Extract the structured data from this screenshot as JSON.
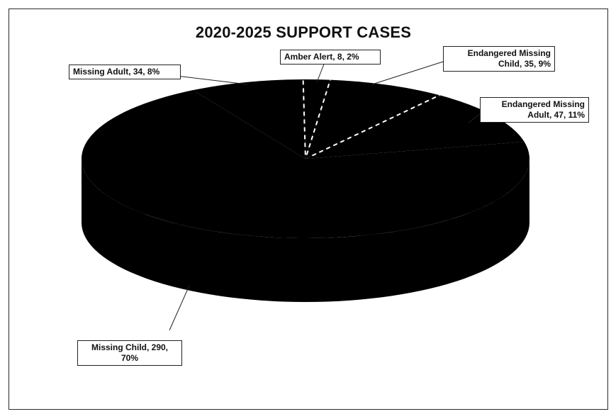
{
  "chart_data": {
    "type": "pie",
    "title": "2020-2025 SUPPORT CASES",
    "categories": [
      "Missing Child",
      "Missing Adult",
      "Amber Alert",
      "Endangered Missing Child",
      "Endangered Missing Adult"
    ],
    "values": [
      290,
      34,
      8,
      35,
      47
    ],
    "percents": [
      70,
      8,
      2,
      9,
      11
    ],
    "labels": [
      {
        "line1": "Missing Child, 290,",
        "line2": "70%"
      },
      {
        "line1": "Missing Adult, 34, 8%",
        "line2": ""
      },
      {
        "line1": "Amber Alert, 8, 2%",
        "line2": ""
      },
      {
        "line1": "Endangered Missing",
        "line2": "Child, 35, 9%"
      },
      {
        "line1": "Endangered Missing",
        "line2": "Adult, 47, 11%"
      }
    ],
    "slice_color": "#000000",
    "separator_color": "#ffffff",
    "label_border_color": "#222222",
    "legend": "none",
    "style": "3d"
  }
}
